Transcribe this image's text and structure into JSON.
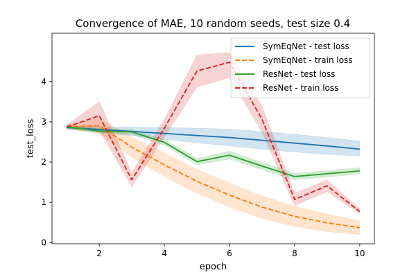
{
  "chart_data": {
    "type": "line",
    "title": "Convergence of MAE, 10 random seeds, test size 0.4",
    "xlabel": "epoch",
    "ylabel": "test_loss",
    "xlim": [
      0.55,
      10.45
    ],
    "ylim": [
      -0.03,
      5.2
    ],
    "xticks": [
      2,
      4,
      6,
      8,
      10
    ],
    "yticks": [
      0,
      1,
      2,
      3,
      4
    ],
    "grid": false,
    "legend_position": "top-right",
    "x": [
      1,
      2,
      3,
      4,
      5,
      6,
      7,
      8,
      9,
      10
    ],
    "series": [
      {
        "name": "SymEqNet - test loss",
        "color": "#1f77b4",
        "dash": "solid",
        "values": [
          2.86,
          2.81,
          2.76,
          2.71,
          2.66,
          2.61,
          2.54,
          2.47,
          2.4,
          2.32
        ],
        "lower": [
          2.82,
          2.74,
          2.65,
          2.56,
          2.48,
          2.4,
          2.32,
          2.25,
          2.19,
          2.15
        ],
        "upper": [
          2.9,
          2.88,
          2.87,
          2.86,
          2.84,
          2.82,
          2.76,
          2.69,
          2.61,
          2.52
        ]
      },
      {
        "name": "SymEqNet - train loss",
        "color": "#ff7f0e",
        "dash": "dashed",
        "values": [
          2.88,
          2.9,
          2.37,
          1.93,
          1.52,
          1.18,
          0.88,
          0.65,
          0.49,
          0.37
        ],
        "lower": [
          2.83,
          2.72,
          2.12,
          1.64,
          1.22,
          0.88,
          0.6,
          0.4,
          0.27,
          0.2
        ],
        "upper": [
          2.93,
          3.08,
          2.62,
          2.22,
          1.82,
          1.48,
          1.16,
          0.9,
          0.71,
          0.54
        ]
      },
      {
        "name": "ResNet - test loss",
        "color": "#2ca02c",
        "dash": "solid",
        "values": [
          2.88,
          2.77,
          2.75,
          2.49,
          2.01,
          2.17,
          1.9,
          1.64,
          1.71,
          1.78
        ],
        "lower": [
          2.84,
          2.71,
          2.69,
          2.42,
          1.93,
          2.07,
          1.81,
          1.56,
          1.63,
          1.7
        ],
        "upper": [
          2.92,
          2.83,
          2.81,
          2.56,
          2.09,
          2.27,
          1.99,
          1.72,
          1.79,
          1.86
        ]
      },
      {
        "name": "ResNet - train loss",
        "color": "#d62728",
        "dash": "dashed",
        "values": [
          2.87,
          3.15,
          1.56,
          2.84,
          4.26,
          4.48,
          3.06,
          1.07,
          1.41,
          0.77
        ],
        "lower": [
          2.82,
          2.8,
          1.38,
          2.62,
          3.86,
          4.1,
          2.74,
          0.92,
          1.26,
          0.71
        ],
        "upper": [
          2.92,
          3.5,
          1.74,
          3.06,
          4.66,
          4.72,
          3.38,
          1.22,
          1.56,
          0.83
        ]
      }
    ]
  }
}
